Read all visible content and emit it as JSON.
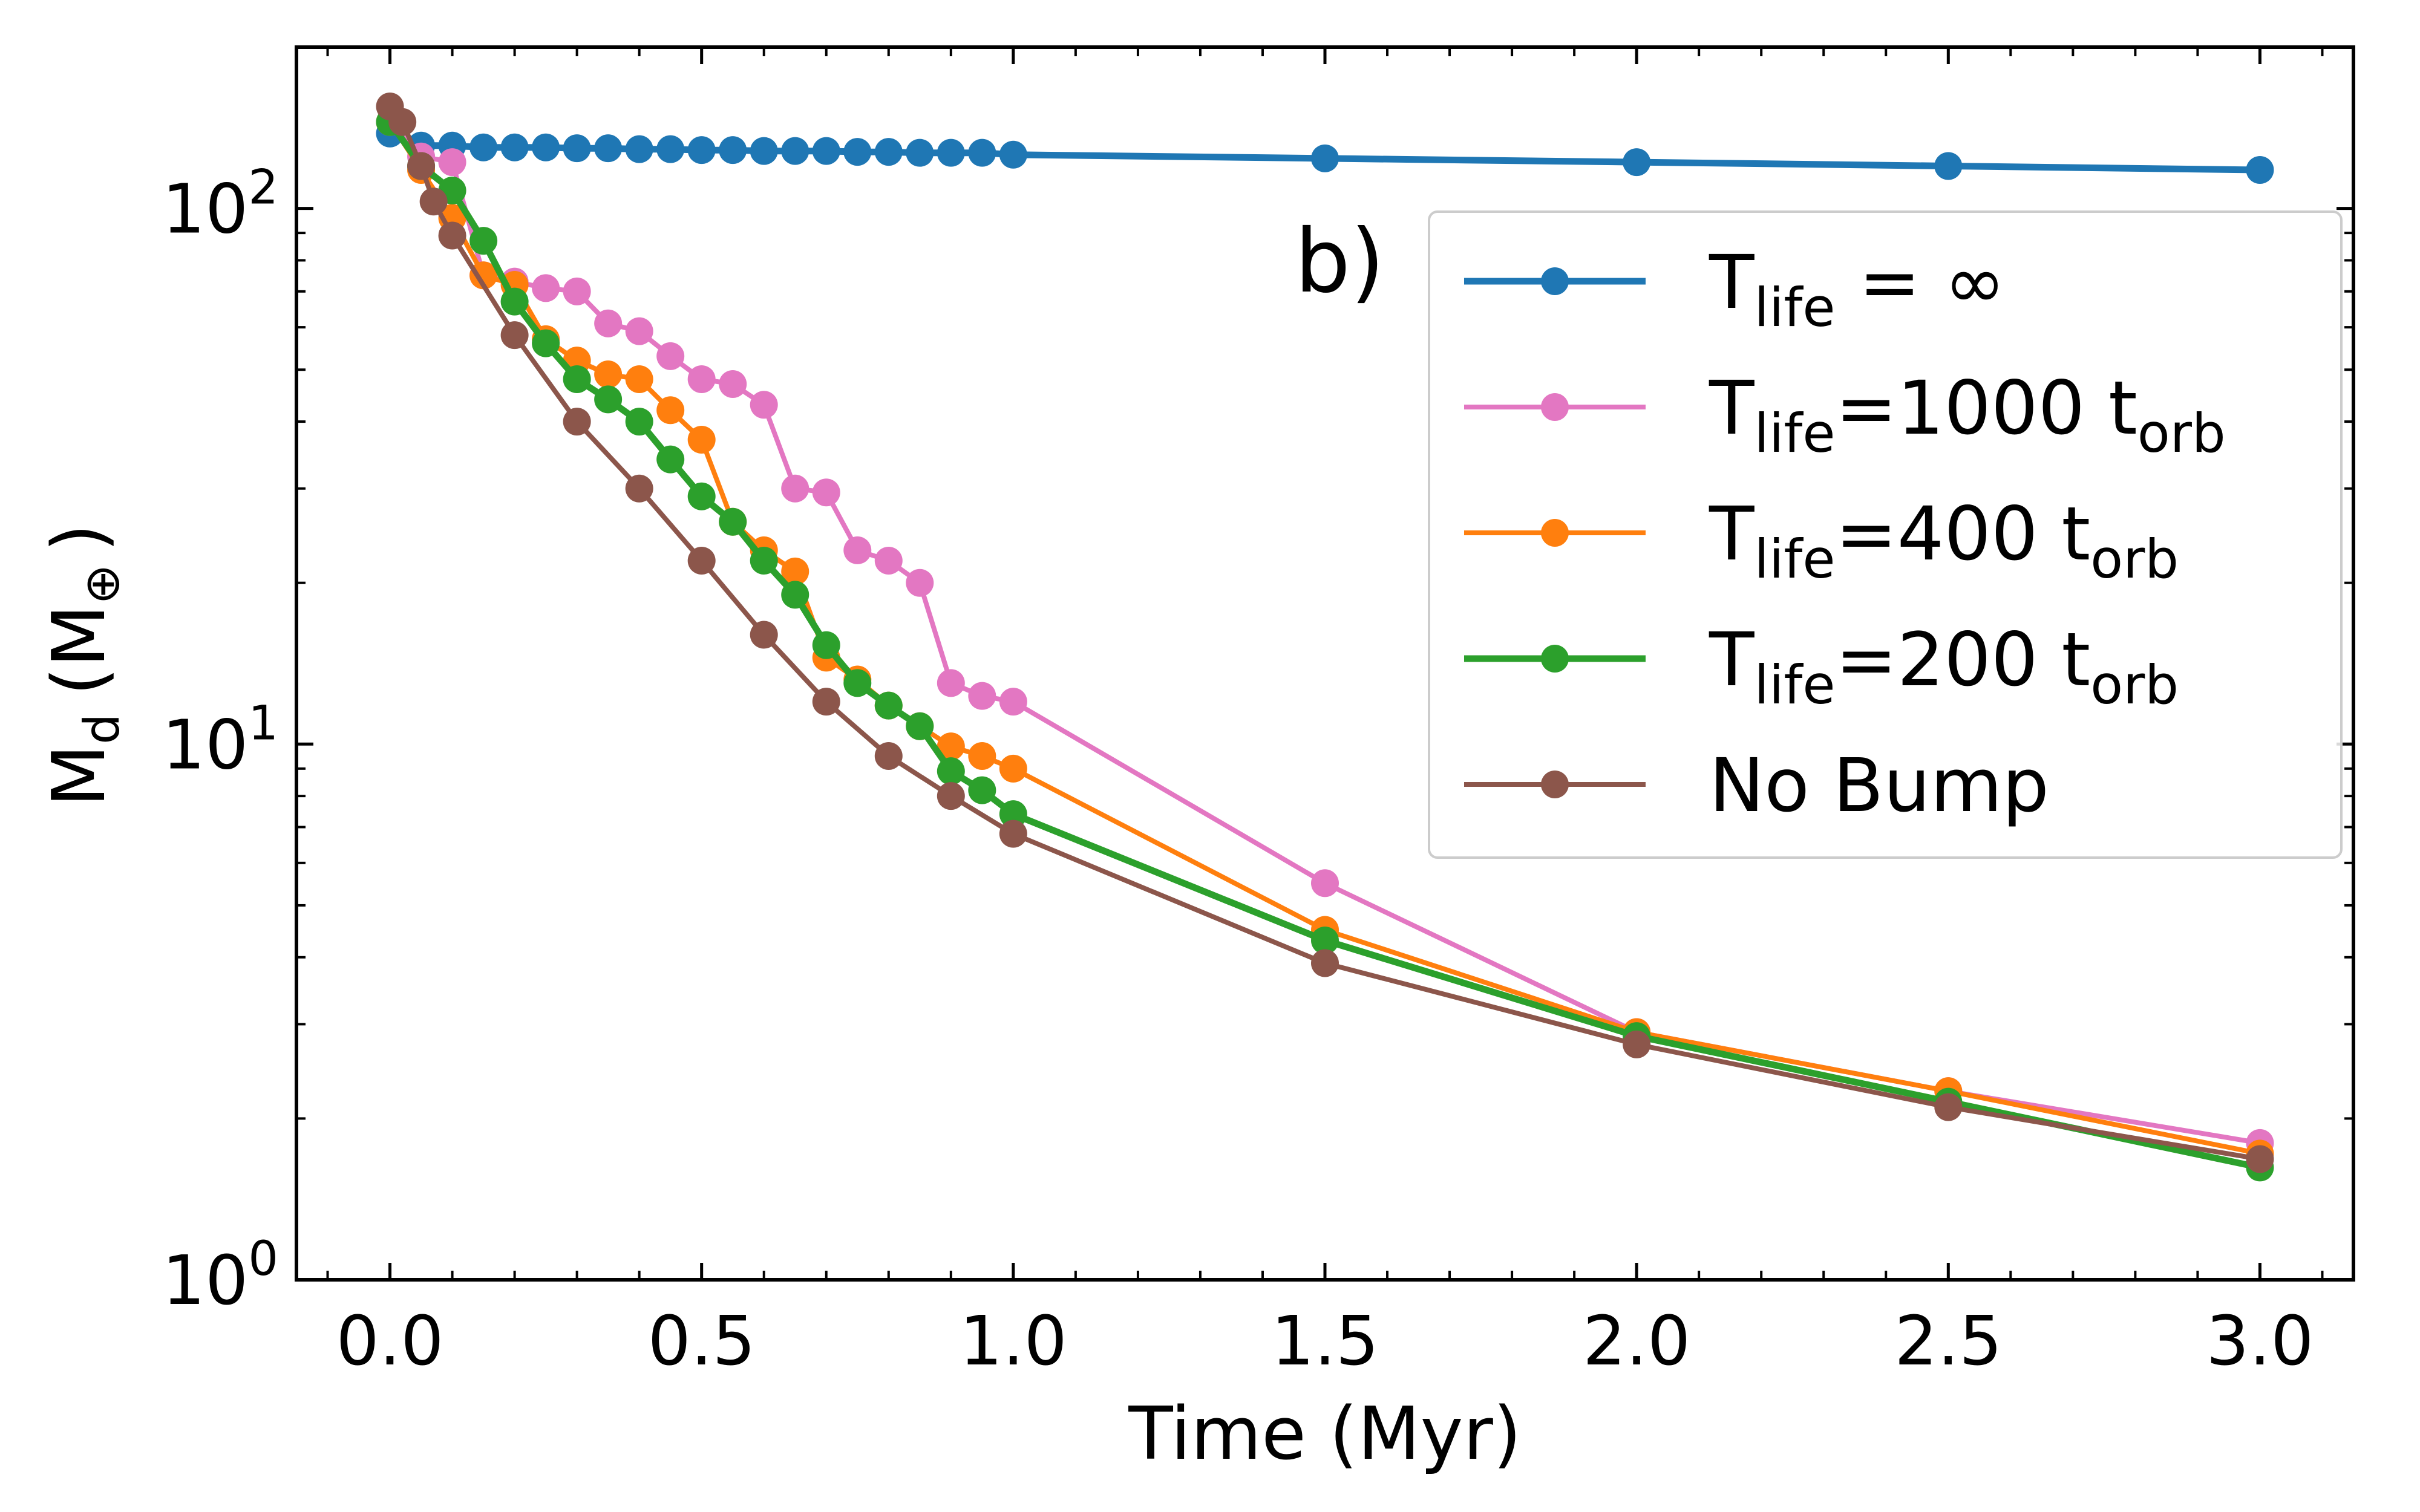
{
  "chart_data": {
    "type": "line",
    "xlabel": "Time (Myr)",
    "ylabel": "M",
    "ylabel_sub": "d",
    "ylabel_unit": "(M",
    "ylabel_unit_sub": "⊕",
    "ylabel_unit_close": ")",
    "yscale": "log",
    "xlim": [
      -0.15,
      3.15
    ],
    "ylim": [
      1,
      200
    ],
    "x_ticks": [
      {
        "v": 0.0,
        "label": "0.0"
      },
      {
        "v": 0.5,
        "label": "0.5"
      },
      {
        "v": 1.0,
        "label": "1.0"
      },
      {
        "v": 1.5,
        "label": "1.5"
      },
      {
        "v": 2.0,
        "label": "2.0"
      },
      {
        "v": 2.5,
        "label": "2.5"
      },
      {
        "v": 3.0,
        "label": "3.0"
      }
    ],
    "y_ticks": [
      {
        "v": 1,
        "base": "10",
        "exp": "0"
      },
      {
        "v": 10,
        "base": "10",
        "exp": "1"
      },
      {
        "v": 100,
        "base": "10",
        "exp": "2"
      }
    ],
    "annotation": "b)",
    "legend_position": "upper-right",
    "series": [
      {
        "name": "T_life = ∞",
        "legend_main": "T",
        "legend_sub": "life",
        "legend_rest": " = ∞",
        "legend_sub2": "",
        "color": "#1f77b4",
        "x": [
          0,
          0.05,
          0.1,
          0.15,
          0.2,
          0.25,
          0.3,
          0.35,
          0.4,
          0.45,
          0.5,
          0.55,
          0.6,
          0.65,
          0.7,
          0.75,
          0.8,
          0.85,
          0.9,
          0.95,
          1.0,
          1.5,
          2.0,
          2.5,
          3.0
        ],
        "y": [
          138,
          131,
          131,
          130,
          130,
          130,
          129.5,
          129.5,
          129,
          129,
          128.5,
          128.5,
          128,
          128,
          128,
          127.5,
          127.5,
          127,
          127,
          127,
          126,
          124,
          122,
          120,
          118
        ]
      },
      {
        "name": "T_life=1000 t_orb",
        "legend_main": "T",
        "legend_sub": "life",
        "legend_rest": "=1000 t",
        "legend_sub2": "orb",
        "color": "#e377c2",
        "x": [
          0,
          0.05,
          0.1,
          0.15,
          0.2,
          0.25,
          0.3,
          0.35,
          0.4,
          0.45,
          0.5,
          0.55,
          0.6,
          0.65,
          0.7,
          0.75,
          0.8,
          0.85,
          0.9,
          0.95,
          1.0,
          1.5,
          2.0,
          2.5,
          3.0
        ],
        "y": [
          145,
          125,
          122,
          75,
          73,
          71,
          70,
          61,
          59,
          53,
          48,
          47,
          43,
          30,
          29.5,
          23,
          22,
          20,
          13,
          12.3,
          12,
          5.5,
          2.9,
          2.25,
          1.8
        ]
      },
      {
        "name": "T_life=400 t_orb",
        "legend_main": "T",
        "legend_sub": "life",
        "legend_rest": "=400 t",
        "legend_sub2": "orb",
        "color": "#ff7f0e",
        "x": [
          0,
          0.05,
          0.1,
          0.15,
          0.2,
          0.25,
          0.3,
          0.35,
          0.4,
          0.45,
          0.5,
          0.55,
          0.6,
          0.65,
          0.7,
          0.75,
          0.8,
          0.85,
          0.9,
          0.95,
          1.0,
          1.5,
          2.0,
          2.5,
          3.0
        ],
        "y": [
          145,
          118,
          96,
          75,
          72,
          57,
          52,
          49,
          48,
          42,
          37,
          26,
          23,
          21,
          14.5,
          13.2,
          11.8,
          10.8,
          9.9,
          9.5,
          9.0,
          4.5,
          2.9,
          2.25,
          1.72
        ]
      },
      {
        "name": "T_life=200 t_orb",
        "legend_main": "T",
        "legend_sub": "life",
        "legend_rest": "=200 t",
        "legend_sub2": "orb",
        "color": "#2ca02c",
        "x": [
          0,
          0.05,
          0.1,
          0.15,
          0.2,
          0.25,
          0.3,
          0.35,
          0.4,
          0.45,
          0.5,
          0.55,
          0.6,
          0.65,
          0.7,
          0.75,
          0.8,
          0.85,
          0.9,
          0.95,
          1.0,
          1.5,
          2.0,
          2.5,
          3.0
        ],
        "y": [
          145,
          120,
          108,
          87,
          67,
          56,
          48,
          44,
          40,
          34,
          29,
          26,
          22,
          19,
          15.3,
          13,
          11.8,
          10.8,
          8.9,
          8.2,
          7.4,
          4.3,
          2.85,
          2.15,
          1.62
        ]
      },
      {
        "name": "No Bump",
        "legend_main": "No Bump",
        "legend_sub": "",
        "legend_rest": "",
        "legend_sub2": "",
        "color": "#8c564b",
        "x": [
          0,
          0.02,
          0.05,
          0.07,
          0.1,
          0.2,
          0.3,
          0.4,
          0.5,
          0.6,
          0.7,
          0.8,
          0.9,
          1.0,
          1.5,
          2.0,
          2.5,
          3.0
        ],
        "y": [
          155,
          145,
          120,
          103,
          89,
          58,
          40,
          30,
          22,
          16,
          12,
          9.5,
          8.0,
          6.8,
          3.9,
          2.75,
          2.1,
          1.68
        ]
      }
    ]
  }
}
